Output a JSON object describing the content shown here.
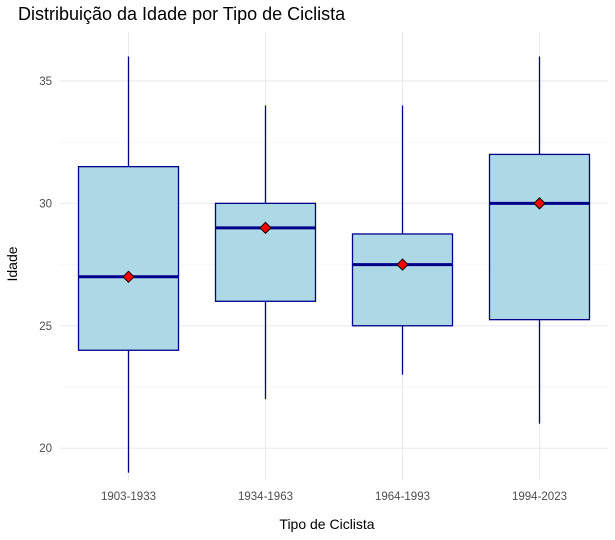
{
  "chart_data": {
    "type": "boxplot",
    "title": "Distribuição da Idade por Tipo de Ciclista",
    "xlabel": "Tipo de Ciclista",
    "ylabel": "Idade",
    "ylim": [
      18.7,
      37.0
    ],
    "yticks": [
      20,
      25,
      30,
      35
    ],
    "categories": [
      "1903-1933",
      "1934-1963",
      "1964-1993",
      "1994-2023"
    ],
    "boxes": [
      {
        "category": "1903-1933",
        "min": 19,
        "q1": 24,
        "median": 27,
        "q3": 31.5,
        "max": 36,
        "mean": 27
      },
      {
        "category": "1934-1963",
        "min": 22,
        "q1": 26,
        "median": 29,
        "q3": 30,
        "max": 34,
        "mean": 29
      },
      {
        "category": "1964-1993",
        "min": 23,
        "q1": 25,
        "median": 27.5,
        "q3": 28.75,
        "max": 34,
        "mean": 27.5
      },
      {
        "category": "1994-2023",
        "min": 21,
        "q1": 25.25,
        "median": 30,
        "q3": 32,
        "max": 36,
        "mean": 30
      }
    ],
    "grid": true,
    "legend": "none",
    "colors": {
      "box_fill": "#add8e6",
      "box_stroke": "#00008b",
      "mean_marker": "#ff0000",
      "grid": "#ebebeb"
    }
  }
}
